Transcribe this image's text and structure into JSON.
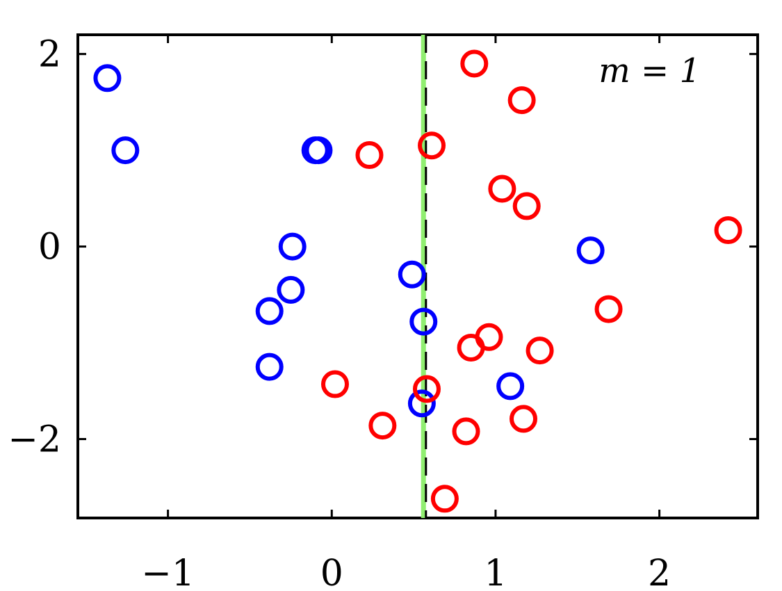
{
  "chart_data": {
    "type": "scatter",
    "title": "",
    "xlabel": "",
    "ylabel": "",
    "xlim": [
      -1.55,
      2.6
    ],
    "ylim": [
      -2.82,
      2.2
    ],
    "x_ticks": [
      -1,
      0,
      1,
      2
    ],
    "y_ticks": [
      -2,
      0,
      2
    ],
    "x_tick_labels": [
      "−1",
      "0",
      "1",
      "2"
    ],
    "y_tick_labels": [
      "−2",
      "0",
      "2"
    ],
    "grid": false,
    "legend": "none",
    "marker": "open-circle",
    "annotation": "m = 1",
    "vertical_lines": [
      {
        "x": 0.56,
        "color": "#90ee70",
        "style": "solid"
      },
      {
        "x": 0.575,
        "color": "#000000",
        "style": "dashed"
      }
    ],
    "series": [
      {
        "color": "#0000ff",
        "points": [
          [
            -1.37,
            1.75
          ],
          [
            -1.26,
            1.0
          ],
          [
            -0.1,
            1.0
          ],
          [
            -0.08,
            1.0
          ],
          [
            -0.24,
            0.0
          ],
          [
            -0.25,
            -0.45
          ],
          [
            -0.38,
            -0.67
          ],
          [
            -0.38,
            -1.25
          ],
          [
            0.49,
            -0.29
          ],
          [
            0.56,
            -0.78
          ],
          [
            0.55,
            -1.63
          ],
          [
            1.09,
            -1.45
          ],
          [
            1.58,
            -0.04
          ]
        ]
      },
      {
        "color": "#ff0000",
        "points": [
          [
            0.87,
            1.9
          ],
          [
            1.16,
            1.52
          ],
          [
            0.61,
            1.05
          ],
          [
            0.23,
            0.95
          ],
          [
            1.04,
            0.6
          ],
          [
            1.19,
            0.42
          ],
          [
            2.42,
            0.17
          ],
          [
            1.69,
            -0.65
          ],
          [
            0.96,
            -0.94
          ],
          [
            0.85,
            -1.05
          ],
          [
            1.27,
            -1.08
          ],
          [
            0.02,
            -1.43
          ],
          [
            0.58,
            -1.48
          ],
          [
            1.17,
            -1.79
          ],
          [
            0.31,
            -1.86
          ],
          [
            0.82,
            -1.92
          ],
          [
            0.69,
            -2.62
          ]
        ]
      }
    ]
  }
}
